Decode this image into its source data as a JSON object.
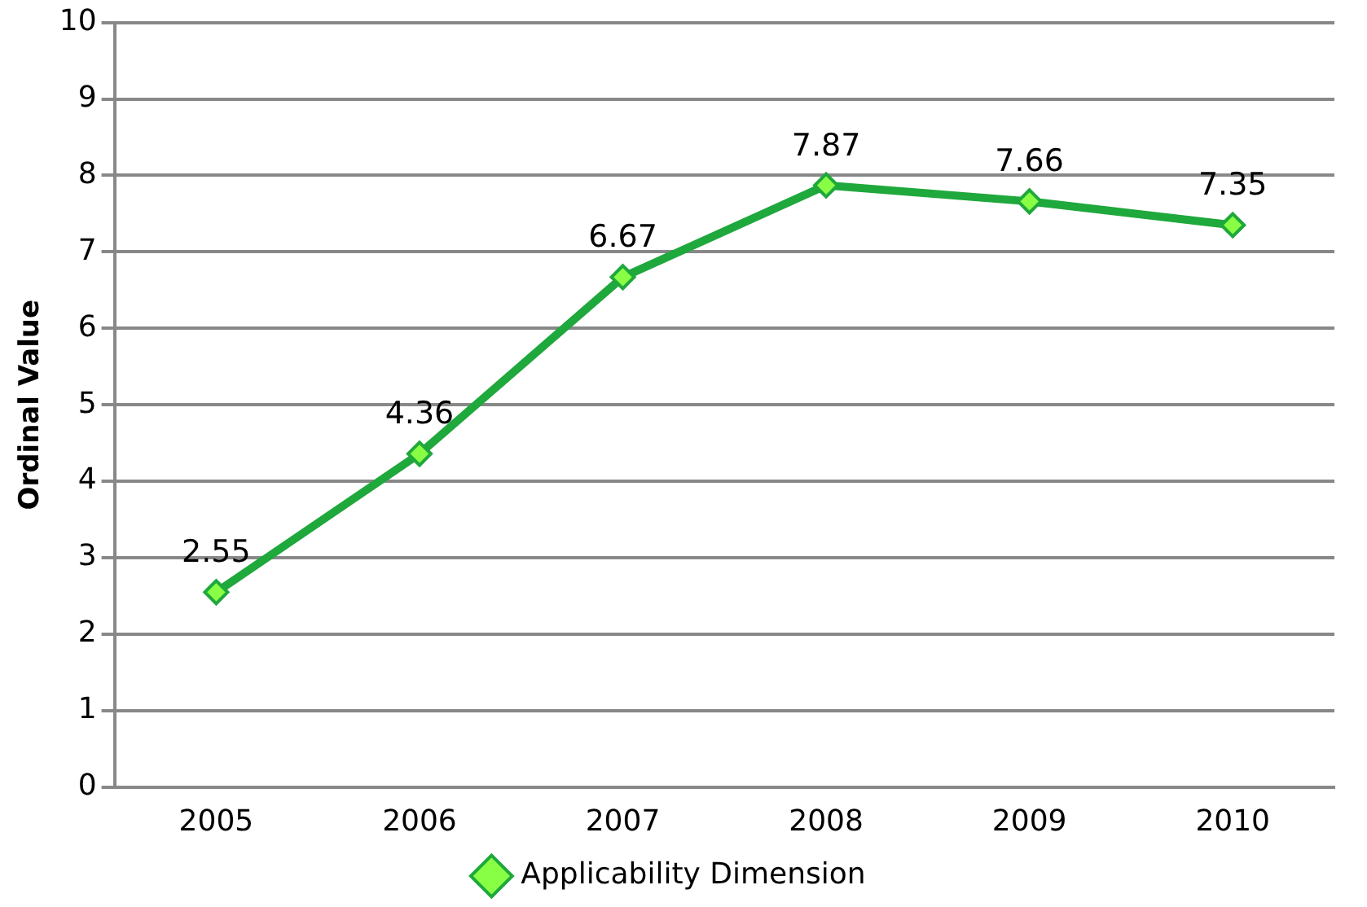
{
  "chart_data": {
    "type": "line",
    "ylabel": "Ordinal Value",
    "categories": [
      "2005",
      "2006",
      "2007",
      "2008",
      "2009",
      "2010"
    ],
    "series": [
      {
        "name": "Applicability Dimension",
        "color": "#1fa83c",
        "values": [
          2.55,
          4.36,
          6.67,
          7.87,
          7.66,
          7.35
        ]
      }
    ],
    "ylim": [
      0,
      10
    ],
    "yticks": [
      0,
      1,
      2,
      3,
      4,
      5,
      6,
      7,
      8,
      9,
      10
    ],
    "grid": "y",
    "legend": "bottom",
    "marker": "diamond",
    "line_style": "solid",
    "data_labels": true
  }
}
